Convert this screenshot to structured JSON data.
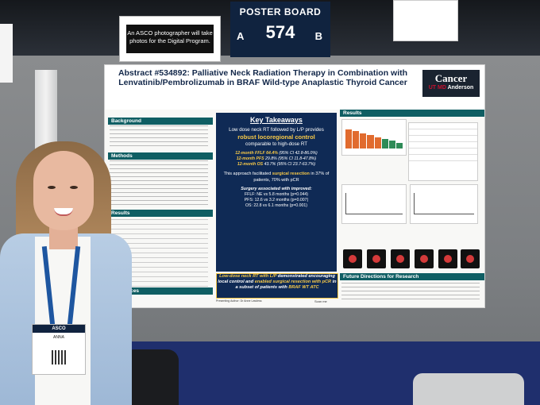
{
  "signage": {
    "asco_note": "An ASCO photographer will take photos for the Digital Program.",
    "board_label": "POSTER BOARD",
    "board_number": "574",
    "side_a": "A",
    "side_b": "B"
  },
  "poster": {
    "title": "Abstract #534892: Palliative Neck Radiation Therapy in Combination with Lenvatinib/Pembrolizumab in BRAF Wild-type Anaplastic Thyroid Cancer",
    "logo_line1": "Cancer",
    "logo_line2a": "UT MD",
    "logo_line2b": "Anderson",
    "sections": {
      "background": "Background",
      "methods": "Methods",
      "results_left": "Results",
      "results_right": "Results",
      "references": "References",
      "future": "Future Directions for Research"
    },
    "key_takeaways": {
      "heading": "Key Takeaways",
      "intro": "Low dose neck RT followed by L/P provides",
      "highlight": "robust locoregional control",
      "intro_end": "comparable to high-dose RT",
      "stat1_bold": "12-month FFLF 64.4%",
      "stat1_rest": "(95% CI 42.8-86.0%)",
      "stat2_bold": "12-month PFS",
      "stat2_rest": "29.8% (95% CI 11.8-47.8%)",
      "stat3_bold": "12-month OS",
      "stat3_rest": "43.7% (95% CI 23.7-63.7%)",
      "ff_text": "This approach facilitated",
      "ff_bold": "surgical resection",
      "ff_end": "in 37% of patients, 70% with pCR",
      "surg_heading": "Surgery associated with improved:",
      "surg1": "FFLF: NE vs 5.8 months (p=0.044)",
      "surg2": "PFS: 12.6 vs 3.2 months (p=0.007)",
      "surg3": "OS: 22.8 vs 6.1 months (p=0.001)"
    },
    "conclusion": {
      "part1": "Low-dose neck RT with L/P",
      "part2": "demonstrated encouraging local control and",
      "part3": "enabled surgical resection with pCR",
      "part4": "in a subset of patients with",
      "part5": "BRAF WT ATC"
    },
    "presenting_author": "Presenting Author: Dr Anne Lawless",
    "scan_me": "Scan me"
  },
  "badge": {
    "org": "ASCO",
    "name": "ANNA"
  }
}
